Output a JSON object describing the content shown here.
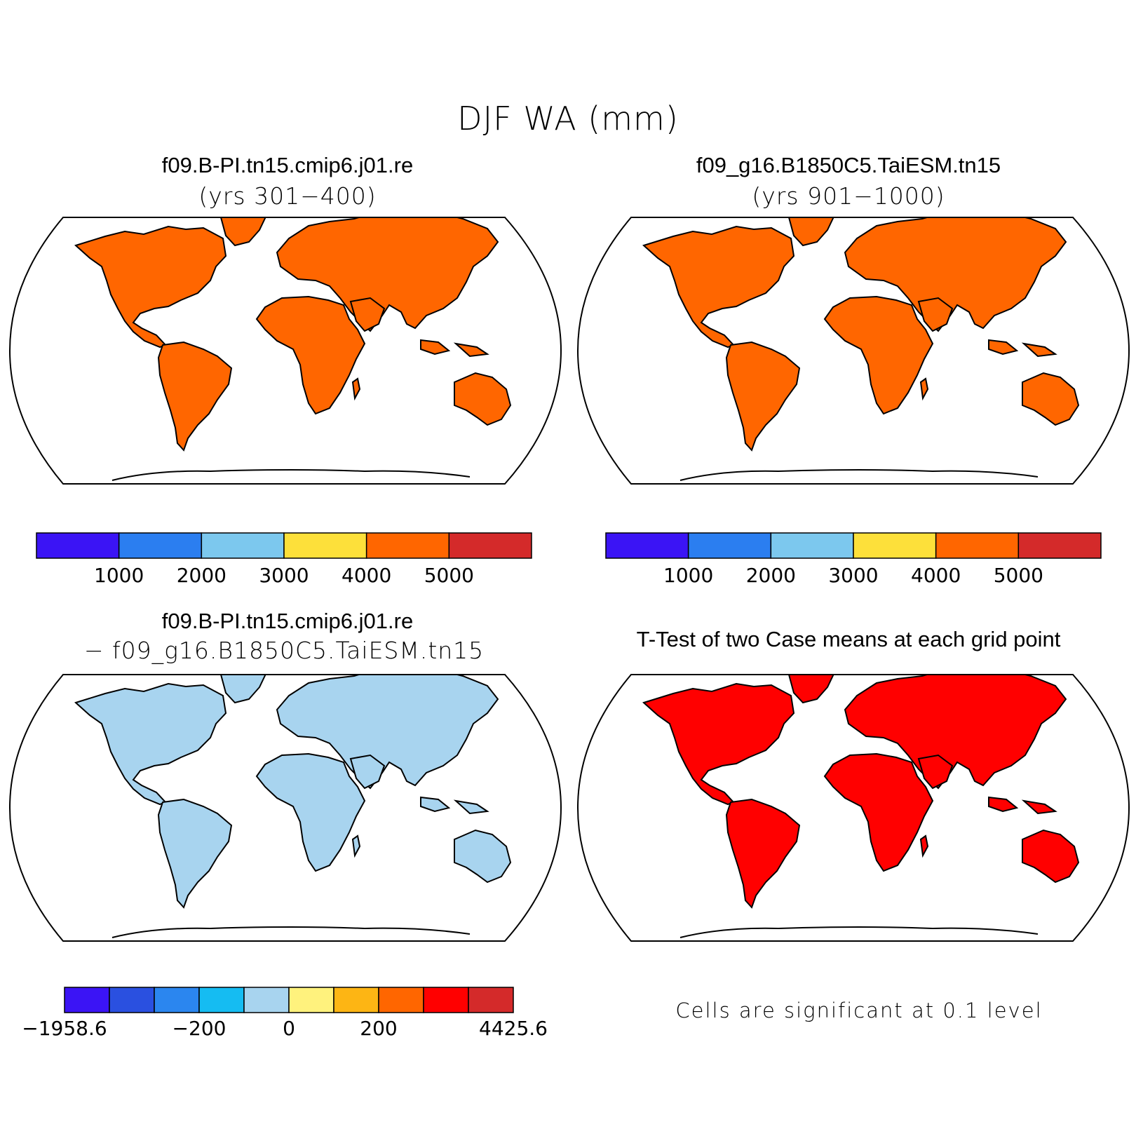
{
  "title": "DJF WA (mm)",
  "panels": [
    {
      "title": "f09.B-PI.tn15.cmip6.j01.re",
      "subtitle": "(yrs 301−400)",
      "land_dominant_color": "#ff6600",
      "colorbar": {
        "colors": [
          "#3b14f5",
          "#2b7ef0",
          "#7cc8ee",
          "#fde03a",
          "#ff6600",
          "#d42a2a"
        ],
        "labels": [
          "1000",
          "2000",
          "3000",
          "4000",
          "5000"
        ]
      }
    },
    {
      "title": "f09_g16.B1850C5.TaiESM.tn15",
      "subtitle": "(yrs 901−1000)",
      "land_dominant_color": "#ff6600",
      "colorbar": {
        "colors": [
          "#3b14f5",
          "#2b7ef0",
          "#7cc8ee",
          "#fde03a",
          "#ff6600",
          "#d42a2a"
        ],
        "labels": [
          "1000",
          "2000",
          "3000",
          "4000",
          "5000"
        ]
      }
    },
    {
      "title": "f09.B-PI.tn15.cmip6.j01.re",
      "subtitle": "− f09_g16.B1850C5.TaiESM.tn15",
      "land_dominant_color": "#a8d4ef",
      "colorbar": {
        "colors": [
          "#3b14f5",
          "#2a50e0",
          "#2b86ef",
          "#15bcf2",
          "#a8d4ef",
          "#fff27d",
          "#fdb514",
          "#ff6600",
          "#ff0000",
          "#d42a2a"
        ],
        "labels": [
          "−1958.6",
          "−200",
          "0",
          "200",
          "4425.6"
        ]
      }
    },
    {
      "title": "T-Test of two Case means at each grid point",
      "note": "Cells are significant at 0.1 level",
      "land_dominant_color": "#ff0000"
    }
  ]
}
